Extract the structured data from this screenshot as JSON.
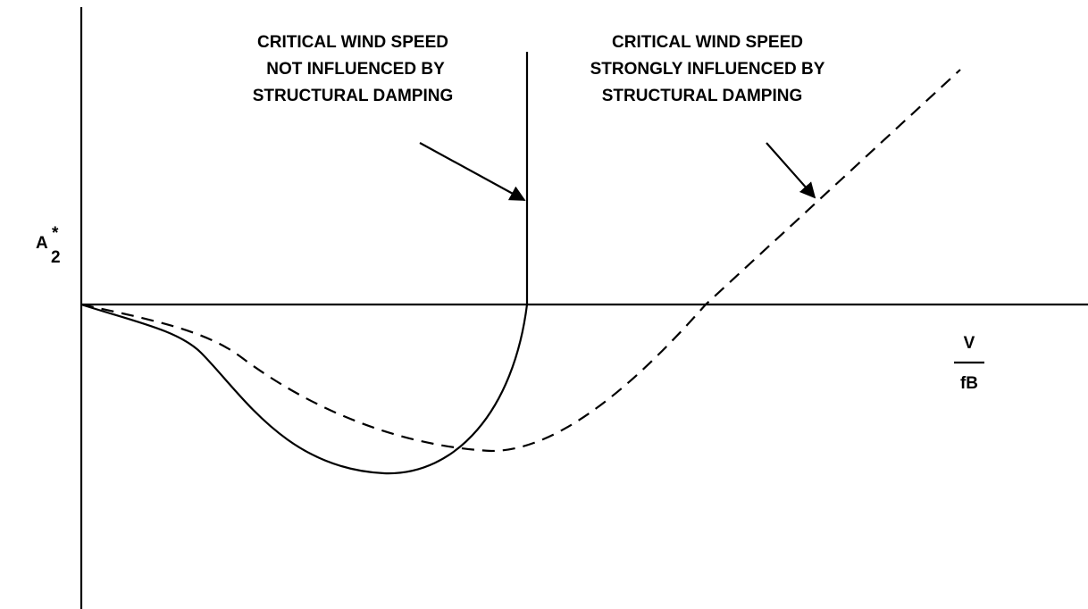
{
  "y_axis_label": {
    "base": "A",
    "superscript": "*",
    "subscript": "2"
  },
  "x_axis_label": {
    "numerator": "V",
    "denominator": "fB"
  },
  "annotations": [
    {
      "lines": [
        "CRITICAL WIND SPEED",
        "NOT INFLUENCED BY",
        "STRUCTURAL DAMPING"
      ]
    },
    {
      "lines": [
        "CRITICAL WIND SPEED",
        "STRONGLY INFLUENCED BY",
        "STRUCTURAL DAMPING"
      ]
    }
  ]
}
